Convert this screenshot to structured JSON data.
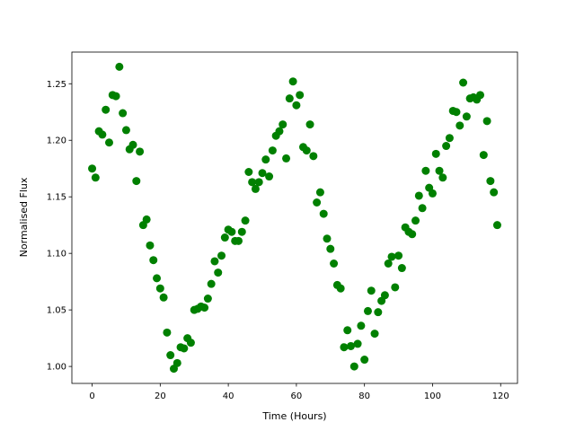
{
  "chart_data": {
    "type": "scatter",
    "x_label": "Time (Hours)",
    "y_label": "Normalised Flux",
    "x": [
      0,
      1,
      2,
      3,
      4,
      5,
      6,
      7,
      8,
      9,
      10,
      11,
      12,
      13,
      14,
      15,
      16,
      17,
      18,
      19,
      20,
      21,
      22,
      23,
      24,
      25,
      26,
      27,
      28,
      29,
      30,
      31,
      32,
      33,
      34,
      35,
      36,
      37,
      38,
      39,
      40,
      41,
      42,
      43,
      44,
      45,
      46,
      47,
      48,
      49,
      50,
      51,
      52,
      53,
      54,
      55,
      56,
      57,
      58,
      59,
      60,
      61,
      62,
      63,
      64,
      65,
      66,
      67,
      68,
      69,
      70,
      71,
      72,
      73,
      74,
      75,
      76,
      77,
      78,
      79,
      80,
      81,
      82,
      83,
      84,
      85,
      86,
      87,
      88,
      89,
      90,
      91,
      92,
      93,
      94,
      95,
      96,
      97,
      98,
      99,
      100,
      101,
      102,
      103,
      104,
      105,
      106,
      107,
      108,
      109,
      110,
      111,
      112,
      113,
      114,
      115,
      116,
      117,
      118,
      119
    ],
    "values": [
      1.175,
      1.167,
      1.208,
      1.205,
      1.227,
      1.198,
      1.24,
      1.239,
      1.265,
      1.224,
      1.209,
      1.192,
      1.196,
      1.164,
      1.19,
      1.125,
      1.13,
      1.107,
      1.094,
      1.078,
      1.069,
      1.061,
      1.03,
      1.01,
      0.998,
      1.003,
      1.017,
      1.016,
      1.025,
      1.021,
      1.05,
      1.051,
      1.053,
      1.052,
      1.06,
      1.073,
      1.093,
      1.083,
      1.098,
      1.114,
      1.121,
      1.119,
      1.111,
      1.111,
      1.119,
      1.129,
      1.172,
      1.163,
      1.157,
      1.163,
      1.171,
      1.183,
      1.168,
      1.191,
      1.204,
      1.208,
      1.214,
      1.184,
      1.237,
      1.252,
      1.231,
      1.24,
      1.194,
      1.191,
      1.214,
      1.186,
      1.145,
      1.154,
      1.135,
      1.113,
      1.104,
      1.091,
      1.072,
      1.069,
      1.017,
      1.032,
      1.018,
      1.0,
      1.02,
      1.036,
      1.006,
      1.049,
      1.067,
      1.029,
      1.048,
      1.058,
      1.063,
      1.091,
      1.097,
      1.07,
      1.098,
      1.087,
      1.123,
      1.119,
      1.117,
      1.129,
      1.151,
      1.14,
      1.173,
      1.158,
      1.153,
      1.188,
      1.173,
      1.167,
      1.195,
      1.202,
      1.226,
      1.225,
      1.213,
      1.251,
      1.221,
      1.237,
      1.238,
      1.236,
      1.24,
      1.187,
      1.217,
      1.164,
      1.154,
      1.125
    ],
    "color": "#008000",
    "xlim": [
      -5.95,
      124.95
    ],
    "xticks": [
      0,
      20,
      40,
      60,
      80,
      100,
      120
    ],
    "ylim": [
      0.985,
      1.278
    ],
    "yticks": [
      {
        "value": 1.0,
        "label": "1.00"
      },
      1.05,
      {
        "value": 1.1,
        "label": "1.10"
      },
      1.15,
      {
        "value": 1.2,
        "label": "1.20"
      },
      1.25
    ]
  }
}
